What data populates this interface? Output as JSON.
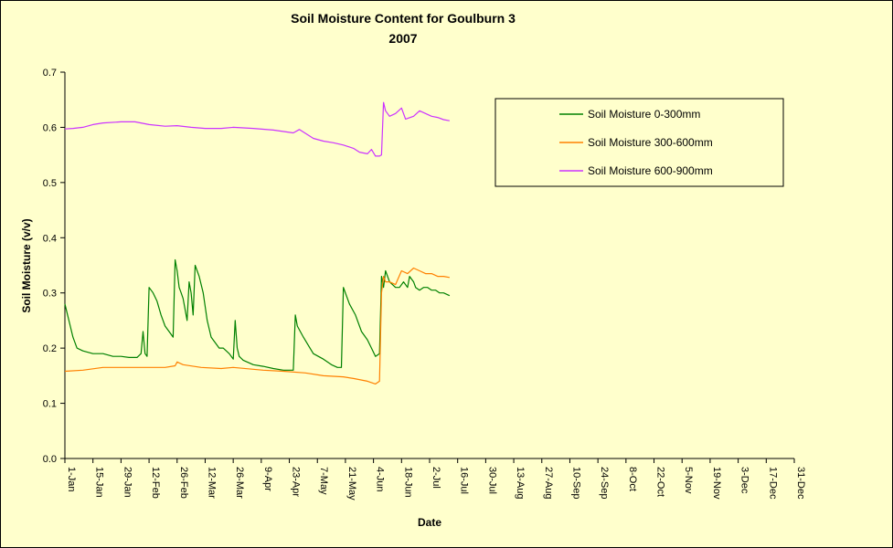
{
  "chart_data": {
    "type": "line",
    "title": "Soil Moisture Content for Goulburn 3",
    "subtitle": "2007",
    "xlabel": "Date",
    "ylabel": "Soil Moisture (v/v)",
    "ylim": [
      0,
      0.7
    ],
    "yticks": [
      "0.0",
      "0.1",
      "0.2",
      "0.3",
      "0.4",
      "0.5",
      "0.6",
      "0.7"
    ],
    "xlim": [
      "1-Jan",
      "31-Dec"
    ],
    "xticks": [
      "1-Jan",
      "15-Jan",
      "29-Jan",
      "12-Feb",
      "26-Feb",
      "12-Mar",
      "26-Mar",
      "9-Apr",
      "23-Apr",
      "7-May",
      "21-May",
      "4-Jun",
      "18-Jun",
      "2-Jul",
      "16-Jul",
      "30-Jul",
      "13-Aug",
      "27-Aug",
      "10-Sep",
      "24-Sep",
      "8-Oct",
      "22-Oct",
      "5-Nov",
      "19-Nov",
      "3-Dec",
      "17-Dec",
      "31-Dec"
    ],
    "grid": false,
    "legend": "top-right",
    "series": [
      {
        "name": "Soil Moisture 0-300mm",
        "color": "#008000",
        "x": [
          "1-Jan",
          "3-Jan",
          "5-Jan",
          "7-Jan",
          "10-Jan",
          "15-Jan",
          "20-Jan",
          "25-Jan",
          "29-Jan",
          "2-Feb",
          "6-Feb",
          "8-Feb",
          "9-Feb",
          "10-Feb",
          "11-Feb",
          "12-Feb",
          "14-Feb",
          "16-Feb",
          "18-Feb",
          "20-Feb",
          "22-Feb",
          "24-Feb",
          "25-Feb",
          "26-Feb",
          "27-Feb",
          "28-Feb",
          "1-Mar",
          "3-Mar",
          "4-Mar",
          "5-Mar",
          "6-Mar",
          "7-Mar",
          "8-Mar",
          "9-Mar",
          "11-Mar",
          "13-Mar",
          "15-Mar",
          "17-Mar",
          "19-Mar",
          "21-Mar",
          "24-Mar",
          "26-Mar",
          "27-Mar",
          "28-Mar",
          "29-Mar",
          "31-Mar",
          "5-Apr",
          "10-Apr",
          "15-Apr",
          "20-Apr",
          "25-Apr",
          "26-Apr",
          "27-Apr",
          "30-Apr",
          "5-May",
          "10-May",
          "14-May",
          "17-May",
          "19-May",
          "20-May",
          "23-May",
          "26-May",
          "29-May",
          "1-Jun",
          "3-Jun",
          "5-Jun",
          "7-Jun",
          "8-Jun",
          "9-Jun",
          "10-Jun",
          "12-Jun",
          "15-Jun",
          "17-Jun",
          "19-Jun",
          "21-Jun",
          "22-Jun",
          "24-Jun",
          "25-Jun",
          "27-Jun",
          "29-Jun",
          "1-Jul",
          "3-Jul",
          "5-Jul",
          "7-Jul",
          "9-Jul",
          "12-Jul"
        ],
        "values": [
          0.28,
          0.25,
          0.22,
          0.2,
          0.195,
          0.19,
          0.19,
          0.185,
          0.185,
          0.183,
          0.183,
          0.19,
          0.23,
          0.19,
          0.185,
          0.31,
          0.3,
          0.285,
          0.26,
          0.24,
          0.23,
          0.22,
          0.36,
          0.34,
          0.31,
          0.3,
          0.29,
          0.25,
          0.32,
          0.3,
          0.26,
          0.35,
          0.34,
          0.33,
          0.3,
          0.25,
          0.22,
          0.21,
          0.2,
          0.2,
          0.19,
          0.18,
          0.25,
          0.2,
          0.185,
          0.178,
          0.17,
          0.167,
          0.163,
          0.16,
          0.16,
          0.26,
          0.24,
          0.22,
          0.19,
          0.18,
          0.17,
          0.165,
          0.165,
          0.31,
          0.28,
          0.26,
          0.23,
          0.215,
          0.2,
          0.185,
          0.19,
          0.33,
          0.31,
          0.34,
          0.32,
          0.31,
          0.31,
          0.32,
          0.31,
          0.33,
          0.32,
          0.31,
          0.305,
          0.31,
          0.31,
          0.305,
          0.305,
          0.3,
          0.3,
          0.295
        ]
      },
      {
        "name": "Soil Moisture 300-600mm",
        "color": "#ff8000",
        "x": [
          "1-Jan",
          "10-Jan",
          "20-Jan",
          "29-Jan",
          "10-Feb",
          "20-Feb",
          "25-Feb",
          "26-Feb",
          "1-Mar",
          "10-Mar",
          "20-Mar",
          "26-Mar",
          "10-Apr",
          "20-Apr",
          "1-May",
          "10-May",
          "20-May",
          "25-May",
          "1-Jun",
          "5-Jun",
          "7-Jun",
          "8-Jun",
          "9-Jun",
          "10-Jun",
          "12-Jun",
          "15-Jun",
          "18-Jun",
          "21-Jun",
          "24-Jun",
          "27-Jun",
          "30-Jun",
          "3-Jul",
          "6-Jul",
          "9-Jul",
          "12-Jul"
        ],
        "values": [
          0.158,
          0.16,
          0.165,
          0.165,
          0.165,
          0.165,
          0.168,
          0.175,
          0.17,
          0.165,
          0.163,
          0.165,
          0.16,
          0.158,
          0.155,
          0.15,
          0.148,
          0.145,
          0.14,
          0.135,
          0.14,
          0.3,
          0.33,
          0.32,
          0.32,
          0.315,
          0.34,
          0.335,
          0.345,
          0.34,
          0.335,
          0.335,
          0.33,
          0.33,
          0.328
        ]
      },
      {
        "name": "Soil Moisture 600-900mm",
        "color": "#cc33ff",
        "x": [
          "1-Jan",
          "5-Jan",
          "10-Jan",
          "15-Jan",
          "20-Jan",
          "29-Jan",
          "5-Feb",
          "12-Feb",
          "20-Feb",
          "26-Feb",
          "5-Mar",
          "12-Mar",
          "20-Mar",
          "26-Mar",
          "5-Apr",
          "15-Apr",
          "25-Apr",
          "28-Apr",
          "5-May",
          "10-May",
          "15-May",
          "20-May",
          "25-May",
          "28-May",
          "1-Jun",
          "3-Jun",
          "5-Jun",
          "7-Jun",
          "8-Jun",
          "9-Jun",
          "10-Jun",
          "12-Jun",
          "15-Jun",
          "18-Jun",
          "20-Jun",
          "24-Jun",
          "27-Jun",
          "30-Jun",
          "3-Jul",
          "6-Jul",
          "9-Jul",
          "12-Jul"
        ],
        "values": [
          0.597,
          0.598,
          0.6,
          0.605,
          0.608,
          0.61,
          0.61,
          0.605,
          0.602,
          0.603,
          0.6,
          0.598,
          0.598,
          0.6,
          0.598,
          0.595,
          0.59,
          0.596,
          0.58,
          0.575,
          0.572,
          0.568,
          0.562,
          0.555,
          0.552,
          0.56,
          0.548,
          0.548,
          0.55,
          0.645,
          0.63,
          0.62,
          0.625,
          0.635,
          0.615,
          0.62,
          0.63,
          0.625,
          0.62,
          0.618,
          0.614,
          0.612
        ]
      }
    ]
  }
}
